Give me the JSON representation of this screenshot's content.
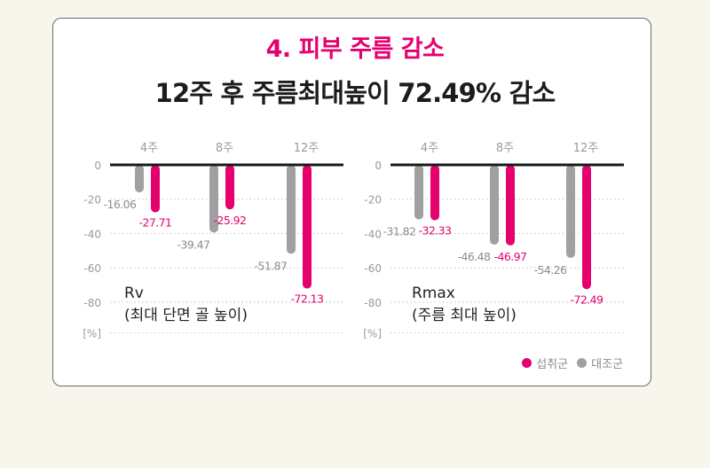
{
  "header": {
    "title": "4. 피부 주름 감소",
    "subtitle": "12주 후 주름최대높이 72.49% 감소"
  },
  "legend": {
    "items": [
      {
        "label": "섭취군",
        "color": "#e5006e"
      },
      {
        "label": "대조군",
        "color": "#a0a0a0"
      }
    ]
  },
  "chart_data": [
    {
      "type": "bar",
      "categories": [
        "4주",
        "8주",
        "12주"
      ],
      "series": [
        {
          "name": "대조군",
          "values": [
            -16.06,
            -39.47,
            -51.87
          ],
          "color": "#a0a0a0"
        },
        {
          "name": "섭취군",
          "values": [
            -27.71,
            -25.92,
            -72.13
          ],
          "color": "#e5006e"
        }
      ],
      "data_labels": {
        "대조군": [
          "-16.06",
          "-39.47",
          "-51.87"
        ],
        "섭취군": [
          "-27.71",
          "-25.92",
          "-72.13"
        ]
      },
      "yticks": [
        "0",
        "-20",
        "-40",
        "-60",
        "-80"
      ],
      "yunit": "[%]",
      "ylim": [
        -100,
        0
      ],
      "label_line1": "Rv",
      "label_line2": "(최대 단면 골 높이)",
      "grid": true
    },
    {
      "type": "bar",
      "categories": [
        "4주",
        "8주",
        "12주"
      ],
      "series": [
        {
          "name": "대조군",
          "values": [
            -31.82,
            -46.48,
            -54.26
          ],
          "color": "#a0a0a0"
        },
        {
          "name": "섭취군",
          "values": [
            -32.33,
            -46.97,
            -72.49
          ],
          "color": "#e5006e"
        }
      ],
      "data_labels": {
        "대조군": [
          "-31.82",
          "-46.48",
          "-54.26"
        ],
        "섭취군": [
          "-32.33",
          "-46.97",
          "-72.49"
        ]
      },
      "yticks": [
        "0",
        "-20",
        "-40",
        "-60",
        "-80"
      ],
      "yunit": "[%]",
      "ylim": [
        -100,
        0
      ],
      "label_line1": "Rmax",
      "label_line2": "(주름 최대 높이)",
      "grid": true
    }
  ]
}
